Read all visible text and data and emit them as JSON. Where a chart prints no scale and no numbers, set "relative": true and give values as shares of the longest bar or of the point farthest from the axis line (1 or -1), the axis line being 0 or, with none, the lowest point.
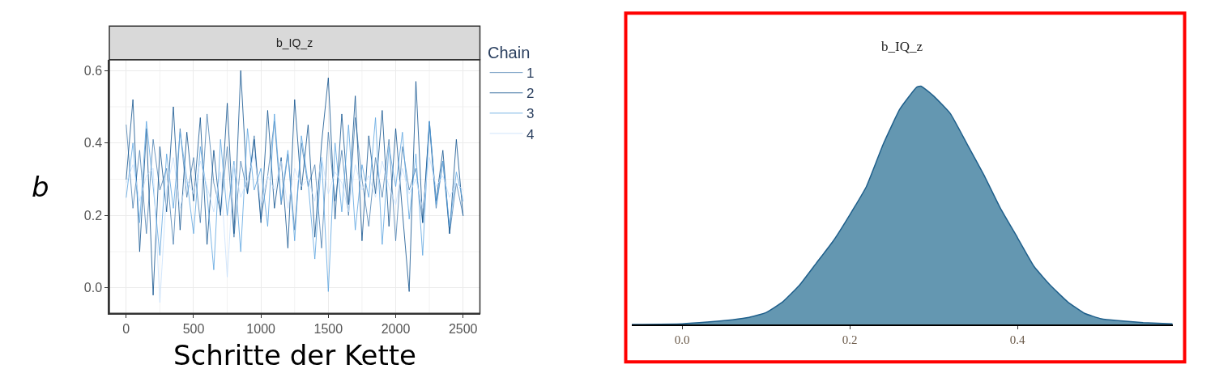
{
  "chart_data": [
    {
      "type": "line",
      "title": "b_IQ_z",
      "xlabel": "Schritte der Kette",
      "ylabel": "b",
      "legend_title": "Chain",
      "legend": "right",
      "grid": true,
      "x": [
        0,
        50,
        100,
        150,
        200,
        250,
        300,
        350,
        400,
        450,
        500,
        550,
        600,
        650,
        700,
        750,
        800,
        850,
        900,
        950,
        1000,
        1050,
        1100,
        1150,
        1200,
        1250,
        1300,
        1350,
        1400,
        1450,
        1500,
        1550,
        1600,
        1650,
        1700,
        1750,
        1800,
        1850,
        1900,
        1950,
        2000,
        2050,
        2100,
        2150,
        2200,
        2250,
        2300,
        2350,
        2400,
        2450,
        2500
      ],
      "xlim": [
        -125,
        2625
      ],
      "xticks": [
        0,
        500,
        1000,
        1500,
        2000,
        2500
      ],
      "ylim": [
        -0.07,
        0.63
      ],
      "yticks": [
        {
          "value": 0,
          "label": "0.0"
        },
        {
          "value": 0.2,
          "label": "0.2"
        },
        {
          "value": 0.4,
          "label": "0.4"
        },
        {
          "value": 0.6,
          "label": "0.6"
        }
      ],
      "series": [
        {
          "name": "1",
          "color": "#4a7fb0",
          "values": [
            0.45,
            0.22,
            0.38,
            0.15,
            0.41,
            0.27,
            0.33,
            0.12,
            0.44,
            0.25,
            0.36,
            0.18,
            0.48,
            0.29,
            0.21,
            0.39,
            0.14,
            0.35,
            0.26,
            0.42,
            0.19,
            0.31,
            0.46,
            0.23,
            0.37,
            0.16,
            0.4,
            0.28,
            0.34,
            0.11,
            0.43,
            0.24,
            0.38,
            0.2,
            0.47,
            0.3,
            0.17,
            0.36,
            0.25,
            0.41,
            0.13,
            0.39,
            0.27,
            0.33,
            0.18,
            0.45,
            0.22,
            0.35,
            0.15,
            0.29,
            0.2
          ]
        },
        {
          "name": "2",
          "color": "#0d4f8b",
          "values": [
            0.3,
            0.52,
            0.1,
            0.44,
            -0.02,
            0.39,
            0.21,
            0.5,
            0.16,
            0.43,
            0.24,
            0.47,
            0.12,
            0.38,
            0.2,
            0.51,
            0.15,
            0.6,
            0.26,
            0.41,
            0.18,
            0.49,
            0.22,
            0.36,
            0.11,
            0.52,
            0.27,
            0.45,
            0.14,
            0.4,
            0.58,
            0.19,
            0.48,
            0.23,
            0.53,
            0.13,
            0.42,
            0.26,
            0.49,
            0.17,
            0.44,
            0.21,
            -0.01,
            0.57,
            0.18,
            0.46,
            0.24,
            0.38,
            0.15,
            0.41,
            0.2
          ]
        },
        {
          "name": "3",
          "color": "#5ba3e0",
          "values": [
            0.25,
            0.4,
            0.18,
            0.46,
            0.28,
            0.09,
            0.37,
            0.22,
            0.43,
            0.3,
            0.15,
            0.39,
            0.26,
            0.05,
            0.41,
            0.2,
            0.35,
            0.1,
            0.44,
            0.27,
            0.33,
            0.17,
            0.48,
            0.24,
            0.38,
            0.13,
            0.42,
            0.29,
            0.08,
            0.36,
            -0.01,
            0.4,
            0.21,
            0.45,
            0.16,
            0.34,
            0.25,
            0.47,
            0.12,
            0.39,
            0.28,
            0.43,
            0.19,
            0.37,
            0.09,
            0.46,
            0.23,
            0.35,
            0.17,
            0.32,
            0.24
          ]
        },
        {
          "name": "4",
          "color": "#c6e0fb",
          "values": [
            0.29,
            0.34,
            0.24,
            0.31,
            0.33,
            -0.04,
            0.27,
            0.36,
            0.22,
            0.3,
            0.26,
            0.35,
            0.28,
            0.21,
            0.32,
            0.03,
            0.34,
            0.25,
            0.3,
            0.37,
            0.23,
            0.31,
            0.27,
            0.35,
            0.22,
            0.33,
            0.28,
            0.3,
            0.24,
            0.36,
            0.26,
            0.32,
            0.29,
            0.21,
            0.34,
            0.27,
            0.31,
            0.25,
            0.35,
            0.28,
            0.23,
            0.33,
            0.26,
            0.3,
            0.22,
            0.36,
            0.28,
            0.31,
            0.25,
            0.29,
            0.27
          ]
        }
      ]
    },
    {
      "type": "area",
      "title": "b_IQ_z",
      "relative": true,
      "legend": false,
      "grid": false,
      "x": [
        -0.06,
        0.0,
        0.03,
        0.06,
        0.08,
        0.1,
        0.12,
        0.14,
        0.16,
        0.18,
        0.2,
        0.22,
        0.24,
        0.26,
        0.28,
        0.285,
        0.3,
        0.32,
        0.34,
        0.36,
        0.38,
        0.4,
        0.42,
        0.44,
        0.46,
        0.48,
        0.5,
        0.52,
        0.55,
        0.585
      ],
      "xlim": [
        -0.06,
        0.585
      ],
      "xticks": [
        {
          "value": 0,
          "label": "0.0"
        },
        {
          "value": 0.2,
          "label": "0.2"
        },
        {
          "value": 0.4,
          "label": "0.4"
        }
      ],
      "series": [
        {
          "color": "#6497b1",
          "values": [
            0,
            0.003,
            0.01,
            0.02,
            0.03,
            0.05,
            0.095,
            0.165,
            0.257,
            0.349,
            0.46,
            0.58,
            0.757,
            0.905,
            0.996,
            1,
            0.959,
            0.885,
            0.757,
            0.628,
            0.486,
            0.365,
            0.243,
            0.162,
            0.095,
            0.047,
            0.024,
            0.016,
            0.008,
            0.003
          ]
        }
      ]
    }
  ]
}
